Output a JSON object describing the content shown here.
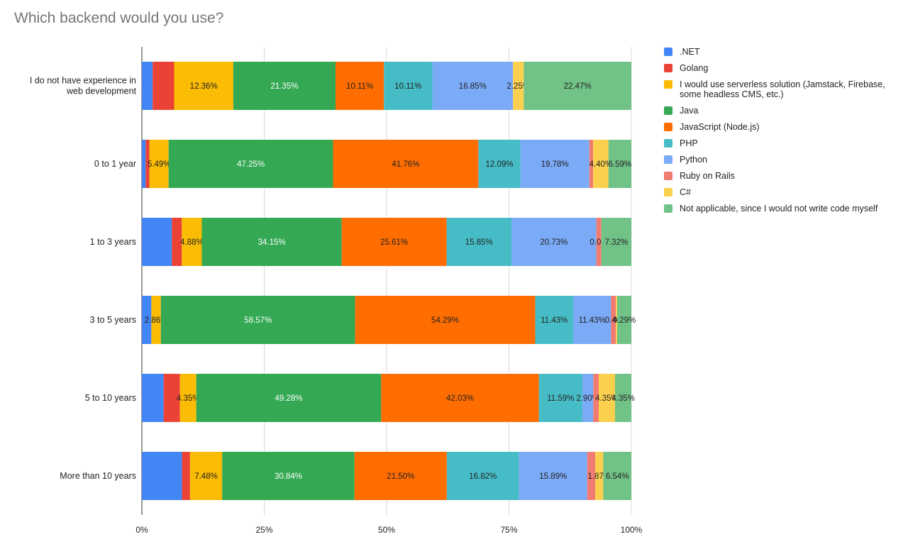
{
  "chart_data": {
    "type": "bar",
    "stacked": "percent",
    "orientation": "horizontal",
    "title": "Which backend would you use?",
    "legend_position": "right",
    "grid": true,
    "xlim": [
      0,
      100
    ],
    "x_ticks": [
      "0%",
      "25%",
      "50%",
      "75%",
      "100%"
    ],
    "categories": [
      "I do not have experience in web development",
      "0 to 1 year",
      "1 to 3 years",
      "3 to 5 years",
      "5 to 10 years",
      "More than 10 years"
    ],
    "category_lines": [
      [
        "I do not have experience in",
        "web development"
      ],
      [
        "0 to 1 year"
      ],
      [
        "1 to 3 years"
      ],
      [
        "3 to 5 years"
      ],
      [
        "5 to 10 years"
      ],
      [
        "More than 10 years"
      ]
    ],
    "series": [
      {
        "name": ".NET",
        "color": "#4285F4",
        "values": [
          2.25,
          1.1,
          7.32,
          2.86,
          5.8,
          9.35
        ],
        "labels": [
          "",
          "",
          "",
          "",
          "",
          ""
        ]
      },
      {
        "name": "Golang",
        "color": "#EA4335",
        "values": [
          4.49,
          1.1,
          2.44,
          0.0,
          4.35,
          1.87
        ],
        "labels": [
          "",
          "",
          "",
          "",
          "",
          ""
        ]
      },
      {
        "name": "I would use serverless solution (Jamstack, Firebase, some headless CMS, etc.)",
        "color": "#FBBC04",
        "values": [
          12.36,
          5.49,
          4.88,
          2.86,
          4.35,
          7.48
        ],
        "labels": [
          "12.36%",
          "5.49%",
          "4.88%",
          "2.86%",
          "4.35%",
          "7.48%"
        ]
      },
      {
        "name": "Java",
        "color": "#34A853",
        "values": [
          21.35,
          47.25,
          34.15,
          58.57,
          49.28,
          30.84
        ],
        "labels": [
          "21.35%",
          "47.25%",
          "34.15%",
          "58.57%",
          "49.28%",
          "30.84%"
        ]
      },
      {
        "name": "JavaScript (Node.js)",
        "color": "#FF6D01",
        "values": [
          10.11,
          41.76,
          25.61,
          54.29,
          42.03,
          21.5
        ],
        "labels": [
          "10.11%",
          "41.76%",
          "25.61%",
          "54.29%",
          "42.03%",
          "21.50%"
        ]
      },
      {
        "name": "PHP",
        "color": "#46BDC6",
        "values": [
          10.11,
          12.09,
          15.85,
          11.43,
          11.59,
          16.82
        ],
        "labels": [
          "10.11%",
          "12.09%",
          "15.85%",
          "11.43%",
          "11.59%",
          "16.82%"
        ]
      },
      {
        "name": "Python",
        "color": "#7BAAF7",
        "values": [
          16.85,
          19.78,
          20.73,
          11.43,
          2.9,
          15.89
        ],
        "labels": [
          "16.85%",
          "19.78%",
          "20.73%",
          "11.43%",
          "2.90%",
          "15.89%"
        ]
      },
      {
        "name": "Ruby on Rails",
        "color": "#F07B72",
        "values": [
          0.0,
          1.1,
          1.22,
          1.43,
          1.45,
          1.87
        ],
        "labels": [
          "",
          "",
          "",
          "",
          "",
          ""
        ]
      },
      {
        "name": "C#",
        "color": "#FCD04F",
        "values": [
          2.25,
          4.4,
          0.0,
          0.4,
          4.35,
          1.87
        ],
        "labels": [
          "2.25%",
          "4.40%",
          "0.00%",
          "0.40%",
          "4.35%",
          "1.87%"
        ]
      },
      {
        "name": "Not applicable, since I would not write code myself",
        "color": "#71C287",
        "values": [
          22.47,
          6.59,
          7.32,
          4.29,
          4.35,
          6.54
        ],
        "labels": [
          "22.47%",
          "6.59%",
          "7.32%",
          "4.29%",
          "4.35%",
          "6.54%"
        ]
      }
    ]
  }
}
